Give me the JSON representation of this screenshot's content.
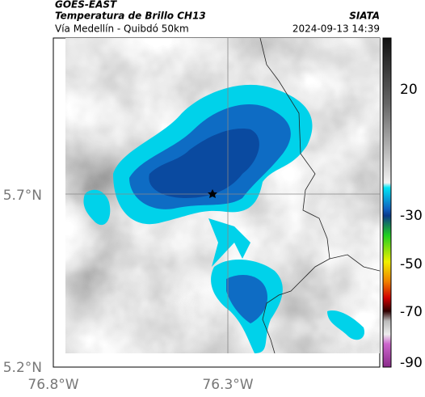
{
  "header": {
    "satellite": "GOES-EAST",
    "product": "Temperatura de Brillo CH13",
    "location": "Vía Medellín - Quibdó 50km",
    "source": "SIATA",
    "datetime": "2024-09-13 14:39"
  },
  "axes": {
    "lat_labels": [
      "5.7°N",
      "5.2°N"
    ],
    "lon_labels": [
      "76.8°W",
      "76.3°W"
    ]
  },
  "colorbar": {
    "labels": [
      "20",
      "-30",
      "-50",
      "-70",
      "-90"
    ]
  }
}
